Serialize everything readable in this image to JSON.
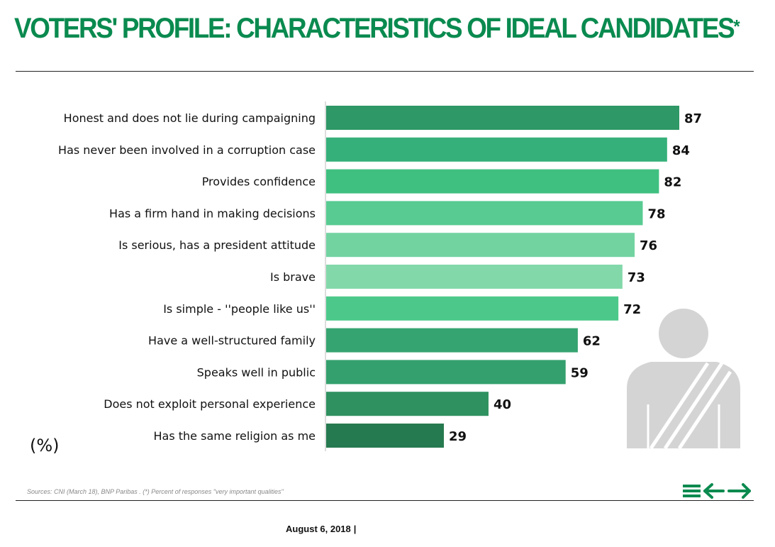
{
  "header": {
    "title": "VOTERS' PROFILE: CHARACTERISTICS OF IDEAL CANDIDATES",
    "title_asterisk": "*"
  },
  "chart_data": {
    "type": "bar",
    "orientation": "horizontal",
    "title": "VOTERS' PROFILE: CHARACTERISTICS OF IDEAL CANDIDATES",
    "unit_label": "(%)",
    "categories": [
      "Honest and does not lie during campaigning",
      "Has never been involved in a corruption case",
      "Provides confidence",
      "Has a firm hand in making decisions",
      "Is serious, has a president attitude",
      "Is brave",
      "Is simple - ''people like us''",
      "Have a well-structured family",
      "Speaks well in public",
      "Does not exploit personal experience",
      "Has the same religion as me"
    ],
    "values": [
      87,
      84,
      82,
      78,
      76,
      73,
      72,
      62,
      59,
      40,
      29
    ],
    "colors": [
      "#2e9866",
      "#36b07a",
      "#3fc080",
      "#58cb92",
      "#72d3a1",
      "#83d8aa",
      "#4cc98a",
      "#36a470",
      "#34a06d",
      "#2f915f",
      "#267a4f"
    ],
    "xlim": [
      0,
      100
    ],
    "grid": false,
    "legend": "none"
  },
  "footer": {
    "source": "Sources: CNI (March 18), BNP Paribas . (*) Percent of responses \"very important qualities\"",
    "date": "August 6, 2018",
    "date_separator": "|"
  },
  "nav": {
    "menu_icon": "menu-icon",
    "back_icon": "arrow-left-icon",
    "forward_icon": "arrow-right-icon",
    "color": "#0a8a4f"
  },
  "decor": {
    "person_icon": "person-silhouette-icon",
    "person_color": "#d4d4d4"
  }
}
